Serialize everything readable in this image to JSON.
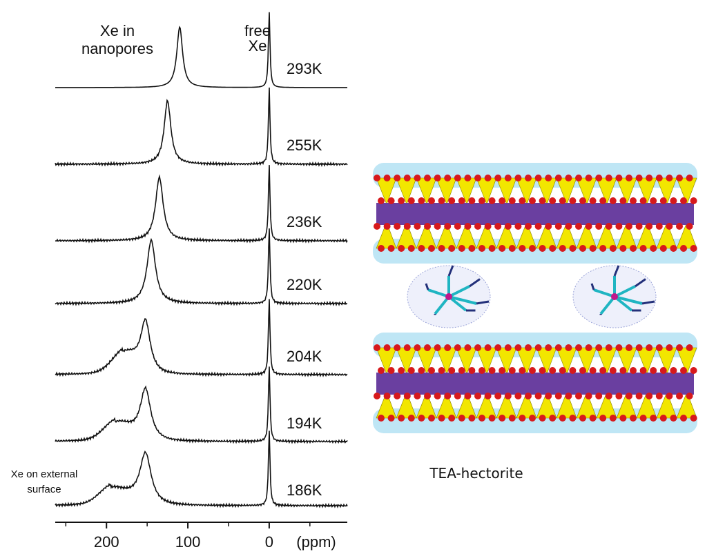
{
  "chart_data": {
    "type": "stacked-spectra",
    "annotation_nanopores": [
      "Xe in",
      "nanopores"
    ],
    "annotation_free": [
      "free",
      "Xe"
    ],
    "annotation_external": [
      "Xe on external",
      "surface"
    ],
    "series": [
      {
        "name": "293K",
        "nanopore_shift": 110,
        "free_shift": 0
      },
      {
        "name": "255K",
        "nanopore_shift": 125,
        "free_shift": 0
      },
      {
        "name": "236K",
        "nanopore_shift": 135,
        "free_shift": 0
      },
      {
        "name": "220K",
        "nanopore_shift": 145,
        "free_shift": 0
      },
      {
        "name": "204K",
        "nanopore_shift": 152,
        "free_shift": 0,
        "external_shift": 180
      },
      {
        "name": "194K",
        "nanopore_shift": 152,
        "free_shift": 0,
        "external_shift": 190
      },
      {
        "name": "186K",
        "nanopore_shift": 152,
        "free_shift": 0,
        "external_shift": 195
      }
    ],
    "xlim": [
      263,
      -96
    ],
    "xticks": [
      200,
      100,
      0
    ],
    "xminor": [
      250,
      150,
      50,
      -50
    ],
    "xlabel": "(ppm)",
    "line_color": "#111111",
    "illustration_caption": "TEA-hectorite"
  }
}
